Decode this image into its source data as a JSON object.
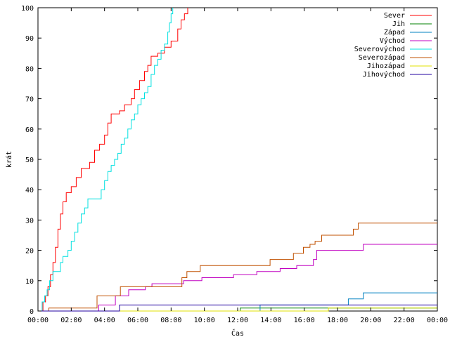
{
  "chart_data": {
    "type": "line",
    "title": "",
    "xlabel": "Čas",
    "ylabel": "krát",
    "xlim_hours": [
      0,
      24
    ],
    "ylim": [
      0,
      100
    ],
    "x_tick_labels": [
      "00:00",
      "02:00",
      "04:00",
      "06:00",
      "08:00",
      "10:00",
      "12:00",
      "14:00",
      "16:00",
      "18:00",
      "20:00",
      "22:00",
      "00:00"
    ],
    "y_tick_labels": [
      "0",
      "10",
      "20",
      "30",
      "40",
      "50",
      "60",
      "70",
      "80",
      "90",
      "100"
    ],
    "grid": false,
    "legend_position": "top-right",
    "series": [
      {
        "name": "Sever",
        "color": "#ff0000",
        "step": true,
        "points": [
          [
            0,
            0
          ],
          [
            0.3,
            3
          ],
          [
            0.45,
            5
          ],
          [
            0.6,
            8
          ],
          [
            0.75,
            12
          ],
          [
            0.9,
            16
          ],
          [
            1.05,
            21
          ],
          [
            1.2,
            27
          ],
          [
            1.35,
            32
          ],
          [
            1.5,
            36
          ],
          [
            1.7,
            39
          ],
          [
            2.0,
            41
          ],
          [
            2.3,
            44
          ],
          [
            2.6,
            47
          ],
          [
            3.1,
            49
          ],
          [
            3.4,
            53
          ],
          [
            3.7,
            55
          ],
          [
            4.0,
            58
          ],
          [
            4.2,
            62
          ],
          [
            4.4,
            65
          ],
          [
            4.9,
            66
          ],
          [
            5.2,
            68
          ],
          [
            5.6,
            70
          ],
          [
            5.8,
            73
          ],
          [
            6.1,
            76
          ],
          [
            6.4,
            79
          ],
          [
            6.6,
            81
          ],
          [
            6.8,
            84
          ],
          [
            7.2,
            85
          ],
          [
            7.6,
            87
          ],
          [
            8.0,
            89
          ],
          [
            8.4,
            93
          ],
          [
            8.6,
            96
          ],
          [
            8.8,
            98
          ],
          [
            9.0,
            100
          ]
        ]
      },
      {
        "name": "Jih",
        "color": "#008000",
        "step": true,
        "points": [
          [
            0,
            0
          ],
          [
            12.1,
            0
          ],
          [
            12.15,
            1
          ],
          [
            24,
            1
          ]
        ]
      },
      {
        "name": "Západ",
        "color": "#0080c0",
        "step": true,
        "points": [
          [
            0,
            0
          ],
          [
            13.3,
            0
          ],
          [
            13.35,
            2
          ],
          [
            18.6,
            2
          ],
          [
            18.65,
            4
          ],
          [
            19.5,
            4
          ],
          [
            19.55,
            6
          ],
          [
            24,
            6
          ]
        ]
      },
      {
        "name": "Východ",
        "color": "#c000c0",
        "step": true,
        "points": [
          [
            0,
            0
          ],
          [
            3.6,
            0
          ],
          [
            3.65,
            2
          ],
          [
            4.6,
            2
          ],
          [
            4.65,
            5
          ],
          [
            5.4,
            5
          ],
          [
            5.45,
            7
          ],
          [
            6.4,
            7
          ],
          [
            6.45,
            8
          ],
          [
            6.8,
            8
          ],
          [
            6.85,
            9
          ],
          [
            8.7,
            9
          ],
          [
            8.75,
            10
          ],
          [
            9.8,
            10
          ],
          [
            9.85,
            11
          ],
          [
            11.7,
            11
          ],
          [
            11.75,
            12
          ],
          [
            13.1,
            12
          ],
          [
            13.15,
            13
          ],
          [
            14.5,
            13
          ],
          [
            14.55,
            14
          ],
          [
            15.5,
            14
          ],
          [
            15.55,
            15
          ],
          [
            16.5,
            15
          ],
          [
            16.55,
            17
          ],
          [
            16.7,
            17
          ],
          [
            16.75,
            20
          ],
          [
            19.5,
            20
          ],
          [
            19.55,
            22
          ],
          [
            24,
            22
          ]
        ]
      },
      {
        "name": "Severovýchod",
        "color": "#00e0e0",
        "step": true,
        "points": [
          [
            0,
            0
          ],
          [
            0.25,
            3
          ],
          [
            0.4,
            5
          ],
          [
            0.55,
            7
          ],
          [
            0.7,
            10
          ],
          [
            0.9,
            13
          ],
          [
            1.2,
            13
          ],
          [
            1.35,
            16
          ],
          [
            1.5,
            18
          ],
          [
            1.8,
            20
          ],
          [
            2.0,
            23
          ],
          [
            2.2,
            26
          ],
          [
            2.4,
            29
          ],
          [
            2.6,
            32
          ],
          [
            2.8,
            34
          ],
          [
            3.0,
            37
          ],
          [
            3.6,
            37
          ],
          [
            3.8,
            40
          ],
          [
            4.0,
            43
          ],
          [
            4.2,
            46
          ],
          [
            4.4,
            48
          ],
          [
            4.6,
            50
          ],
          [
            4.8,
            52
          ],
          [
            5.0,
            55
          ],
          [
            5.2,
            57
          ],
          [
            5.4,
            60
          ],
          [
            5.6,
            63
          ],
          [
            5.8,
            65
          ],
          [
            6.0,
            68
          ],
          [
            6.2,
            70
          ],
          [
            6.4,
            72
          ],
          [
            6.6,
            74
          ],
          [
            6.8,
            78
          ],
          [
            7.0,
            81
          ],
          [
            7.2,
            83
          ],
          [
            7.4,
            86
          ],
          [
            7.6,
            88
          ],
          [
            7.8,
            92
          ],
          [
            7.9,
            95
          ],
          [
            8.0,
            98
          ],
          [
            8.1,
            100
          ]
        ]
      },
      {
        "name": "Severozápad",
        "color": "#c05000",
        "step": true,
        "points": [
          [
            0,
            0
          ],
          [
            0.6,
            0
          ],
          [
            0.65,
            1
          ],
          [
            3.5,
            1
          ],
          [
            3.55,
            5
          ],
          [
            4.9,
            5
          ],
          [
            4.95,
            8
          ],
          [
            7.0,
            8
          ],
          [
            7.05,
            8
          ],
          [
            8.6,
            8
          ],
          [
            8.65,
            11
          ],
          [
            8.9,
            11
          ],
          [
            8.95,
            13
          ],
          [
            9.7,
            13
          ],
          [
            9.75,
            15
          ],
          [
            13.9,
            15
          ],
          [
            13.95,
            17
          ],
          [
            15.3,
            17
          ],
          [
            15.35,
            19
          ],
          [
            15.9,
            19
          ],
          [
            15.95,
            21
          ],
          [
            16.3,
            21
          ],
          [
            16.35,
            22
          ],
          [
            16.6,
            22
          ],
          [
            16.65,
            23
          ],
          [
            17.0,
            23
          ],
          [
            17.05,
            25
          ],
          [
            18.9,
            25
          ],
          [
            18.95,
            27
          ],
          [
            19.2,
            27
          ],
          [
            19.25,
            29
          ],
          [
            24,
            29
          ]
        ]
      },
      {
        "name": "Jihozápad",
        "color": "#e0e000",
        "step": true,
        "points": [
          [
            0,
            0
          ],
          [
            17.4,
            0
          ],
          [
            17.45,
            1
          ],
          [
            24,
            1
          ]
        ]
      },
      {
        "name": "Jihovýchod",
        "color": "#2000a0",
        "step": true,
        "points": [
          [
            0,
            0
          ],
          [
            4.85,
            0
          ],
          [
            4.9,
            2
          ],
          [
            24,
            2
          ]
        ]
      }
    ]
  }
}
